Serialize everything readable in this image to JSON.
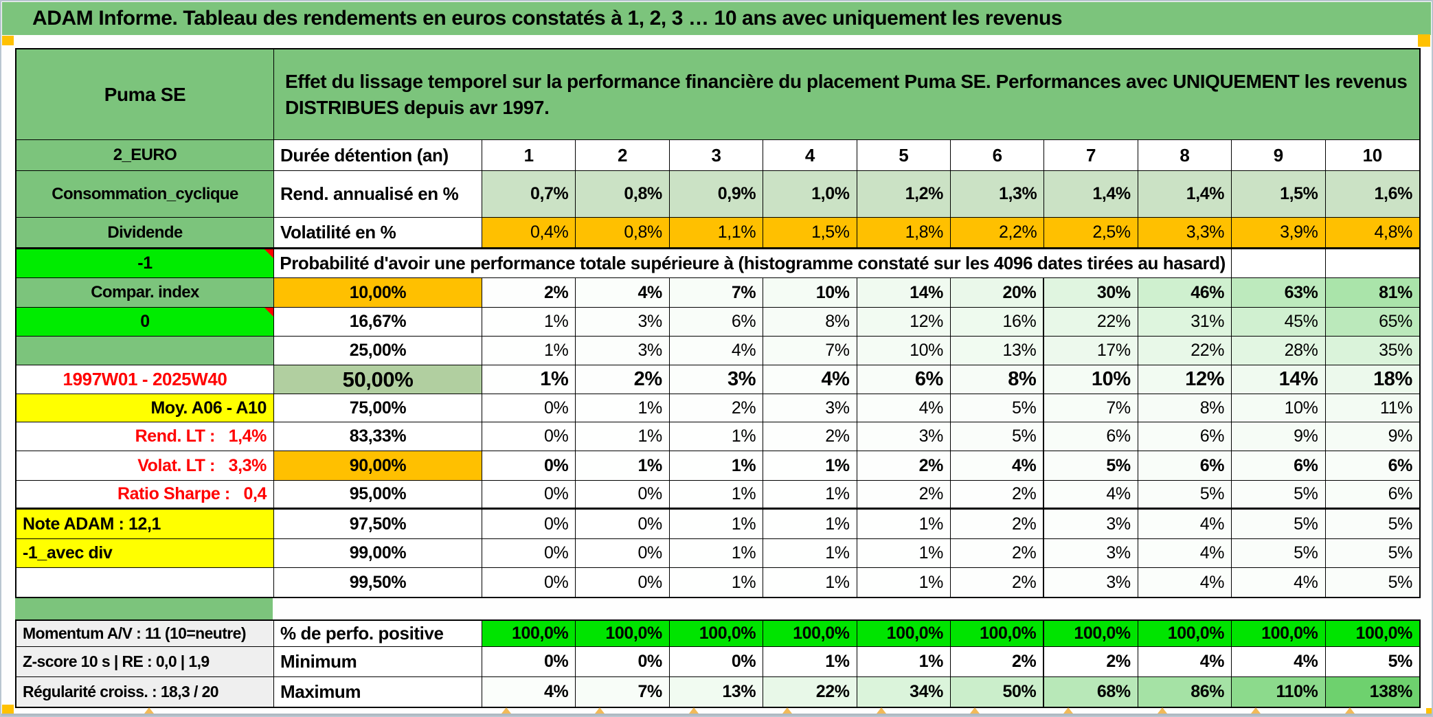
{
  "banner": {
    "title": "ADAM Informe. Tableau des rendements en euros constatés à 1, 2, 3 … 10 ans avec uniquement les revenus"
  },
  "header": {
    "instrument": "Puma SE",
    "description": "Effet du lissage temporel sur la performance financière du placement Puma SE. Performances avec UNIQUEMENT les revenus DISTRIBUES depuis avr 1997."
  },
  "columns": {
    "corner": "2_EURO",
    "duration_label": "Durée détention (an)",
    "years": [
      "1",
      "2",
      "3",
      "4",
      "5",
      "6",
      "7",
      "8",
      "9",
      "10"
    ]
  },
  "metrics": [
    {
      "left": "Consommation_cyclique",
      "name": "Rend. annualisé en %",
      "cell_style": "lightgreen",
      "bold": true,
      "values": [
        "0,7%",
        "0,8%",
        "0,9%",
        "1,0%",
        "1,2%",
        "1,3%",
        "1,4%",
        "1,4%",
        "1,5%",
        "1,6%"
      ]
    },
    {
      "left": "Dividende",
      "name": "Volatilité en %",
      "cell_style": "orange",
      "bold": false,
      "values": [
        "0,4%",
        "0,8%",
        "1,1%",
        "1,5%",
        "1,8%",
        "2,2%",
        "2,5%",
        "3,3%",
        "3,9%",
        "4,8%"
      ]
    }
  ],
  "probability": {
    "left_label": "-1",
    "title": "Probabilité d'avoir une performance totale supérieure à (histogramme constaté sur les 4096 dates tirées au hasard)",
    "rows": [
      {
        "left": "Compar. index",
        "left_style": "green",
        "threshold": "10,00%",
        "threshold_style": "orange",
        "bold": true,
        "big": false,
        "values": [
          "2%",
          "4%",
          "7%",
          "10%",
          "14%",
          "20%",
          "30%",
          "46%",
          "63%",
          "81%"
        ]
      },
      {
        "left": "0",
        "left_style": "bright",
        "threshold": "16,67%",
        "threshold_style": "white",
        "bold": false,
        "big": false,
        "values": [
          "1%",
          "3%",
          "6%",
          "8%",
          "12%",
          "16%",
          "22%",
          "31%",
          "45%",
          "65%"
        ]
      },
      {
        "left": "",
        "left_style": "green",
        "threshold": "25,00%",
        "threshold_style": "white",
        "bold": false,
        "big": false,
        "values": [
          "1%",
          "3%",
          "4%",
          "7%",
          "10%",
          "13%",
          "17%",
          "22%",
          "28%",
          "35%"
        ]
      },
      {
        "left": "1997W01 - 2025W40",
        "left_style": "period",
        "threshold": "50,00%",
        "threshold_style": "olive",
        "bold": true,
        "big": true,
        "values": [
          "1%",
          "2%",
          "3%",
          "4%",
          "6%",
          "8%",
          "10%",
          "12%",
          "14%",
          "18%"
        ]
      },
      {
        "left": "Moy. A06 - A10",
        "left_style": "yellow-right",
        "threshold": "75,00%",
        "threshold_style": "white",
        "bold": false,
        "big": false,
        "values": [
          "0%",
          "1%",
          "2%",
          "3%",
          "4%",
          "5%",
          "7%",
          "8%",
          "10%",
          "11%"
        ]
      },
      {
        "left": "Rend. LT :   1,4%",
        "left_style": "red-right",
        "threshold": "83,33%",
        "threshold_style": "white",
        "bold": false,
        "big": false,
        "values": [
          "0%",
          "1%",
          "1%",
          "2%",
          "3%",
          "5%",
          "6%",
          "6%",
          "9%",
          "9%"
        ]
      },
      {
        "left": "Volat. LT :   3,3%",
        "left_style": "red-right",
        "threshold": "90,00%",
        "threshold_style": "orange",
        "bold": true,
        "big": false,
        "values": [
          "0%",
          "1%",
          "1%",
          "1%",
          "2%",
          "4%",
          "5%",
          "6%",
          "6%",
          "6%"
        ]
      },
      {
        "left": "Ratio Sharpe :   0,4",
        "left_style": "red-right",
        "threshold": "95,00%",
        "threshold_style": "white",
        "bold": false,
        "big": false,
        "thick_bottom": true,
        "values": [
          "0%",
          "0%",
          "1%",
          "1%",
          "2%",
          "2%",
          "4%",
          "5%",
          "5%",
          "6%"
        ]
      },
      {
        "left": "Note ADAM : 12,1",
        "left_style": "yellow-left",
        "threshold": "97,50%",
        "threshold_style": "white",
        "bold": false,
        "big": false,
        "values": [
          "0%",
          "0%",
          "1%",
          "1%",
          "1%",
          "2%",
          "3%",
          "4%",
          "5%",
          "5%"
        ]
      },
      {
        "left": "-1_avec div",
        "left_style": "yellow-left",
        "threshold": "99,00%",
        "threshold_style": "white",
        "bold": false,
        "big": false,
        "values": [
          "0%",
          "0%",
          "1%",
          "1%",
          "1%",
          "2%",
          "3%",
          "4%",
          "5%",
          "5%"
        ]
      },
      {
        "left": "",
        "left_style": "blank",
        "threshold": "99,50%",
        "threshold_style": "white",
        "bold": false,
        "big": false,
        "values": [
          "0%",
          "0%",
          "1%",
          "1%",
          "1%",
          "2%",
          "3%",
          "4%",
          "4%",
          "5%"
        ]
      }
    ]
  },
  "summary": [
    {
      "left": "Momentum A/V : 11 (10=neutre)",
      "name": "% de perfo. positive",
      "cell_style": "bright",
      "bold": true,
      "values": [
        "100,0%",
        "100,0%",
        "100,0%",
        "100,0%",
        "100,0%",
        "100,0%",
        "100,0%",
        "100,0%",
        "100,0%",
        "100,0%"
      ]
    },
    {
      "left": "Z-score 10 s | RE : 0,0 | 1,9",
      "name": "Minimum",
      "cell_style": "white",
      "bold": true,
      "values": [
        "0%",
        "0%",
        "0%",
        "1%",
        "1%",
        "2%",
        "2%",
        "4%",
        "4%",
        "5%"
      ]
    },
    {
      "left": "Régularité croiss. : 18,3 / 20",
      "name": "Maximum",
      "cell_style": "gradient",
      "bold": true,
      "values": [
        "4%",
        "7%",
        "13%",
        "22%",
        "34%",
        "50%",
        "68%",
        "86%",
        "110%",
        "138%"
      ]
    }
  ],
  "colors": {
    "medium_green": "#7CC47C",
    "bright_green": "#00EC00",
    "perf_green": "#00E400",
    "light_green": "#CBE2C5",
    "olive_green": "#B1CFA0",
    "orange": "#FFC000",
    "yellow": "#FFFF00",
    "gray": "#EFEFEF",
    "red": "#FF0000",
    "gradient_end": "#6CD06C"
  }
}
